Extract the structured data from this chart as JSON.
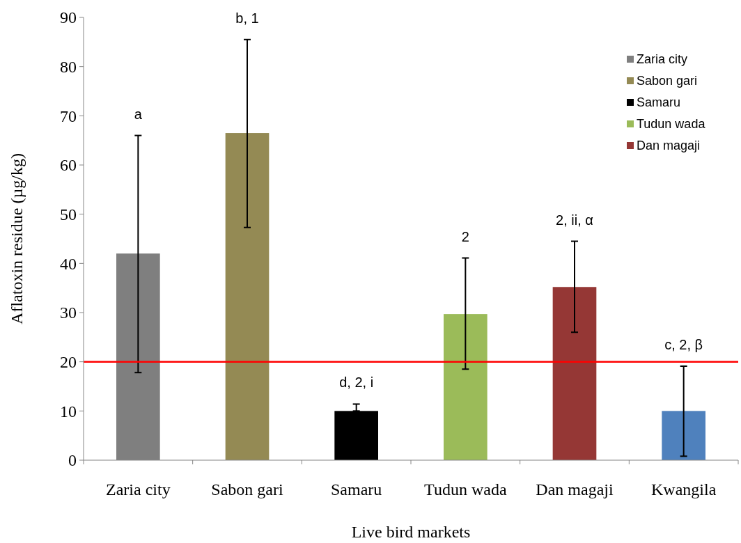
{
  "chart_data": {
    "type": "bar",
    "xlabel": "Live bird markets",
    "ylabel": "Aflatoxin residue (µg/kg)",
    "categories": [
      "Zaria city",
      "Sabon gari",
      "Samaru",
      "Tudun wada",
      "Dan magaji",
      "Kwangila"
    ],
    "series": [
      {
        "name": "Zaria city",
        "color": "#7f7f7f",
        "values": [
          42,
          null,
          null,
          null,
          null,
          null
        ],
        "errors": [
          [
            17.8,
            66
          ],
          null,
          null,
          null,
          null,
          null
        ]
      },
      {
        "name": "Sabon gari",
        "color": "#948a54",
        "values": [
          null,
          66.5,
          null,
          null,
          null,
          null
        ],
        "errors": [
          null,
          [
            47.3,
            85.5
          ],
          null,
          null,
          null,
          null
        ]
      },
      {
        "name": "Samaru",
        "color": "#000000",
        "values": [
          null,
          null,
          10,
          null,
          null,
          null
        ],
        "errors": [
          null,
          null,
          [
            10,
            11.4
          ],
          null,
          null,
          null
        ]
      },
      {
        "name": "Tudun wada",
        "color": "#9bbb59",
        "values": [
          null,
          null,
          null,
          29.7,
          null,
          null
        ],
        "errors": [
          null,
          null,
          null,
          [
            18.5,
            41.1
          ],
          null,
          null
        ]
      },
      {
        "name": "Dan magaji",
        "color": "#953735",
        "values": [
          null,
          null,
          null,
          null,
          35.2,
          null
        ],
        "errors": [
          null,
          null,
          null,
          null,
          [
            26,
            44.5
          ],
          null
        ]
      },
      {
        "color": "#4f81bd",
        "values": [
          null,
          null,
          null,
          null,
          null,
          10
        ],
        "errors": [
          null,
          null,
          null,
          null,
          null,
          [
            0.8,
            19.1
          ]
        ]
      }
    ],
    "ylim": [
      0,
      90
    ],
    "yticks": [
      0,
      10,
      20,
      30,
      40,
      50,
      60,
      70,
      80,
      90
    ],
    "grid": false,
    "legend": "top right",
    "ref_lines": [
      {
        "axis": "y",
        "value": 20,
        "color": "#ff0000"
      }
    ],
    "annotations": [
      "a",
      "b, 1",
      "d, 2, i",
      "2",
      "2, ii, α",
      "c, 2, β"
    ]
  }
}
